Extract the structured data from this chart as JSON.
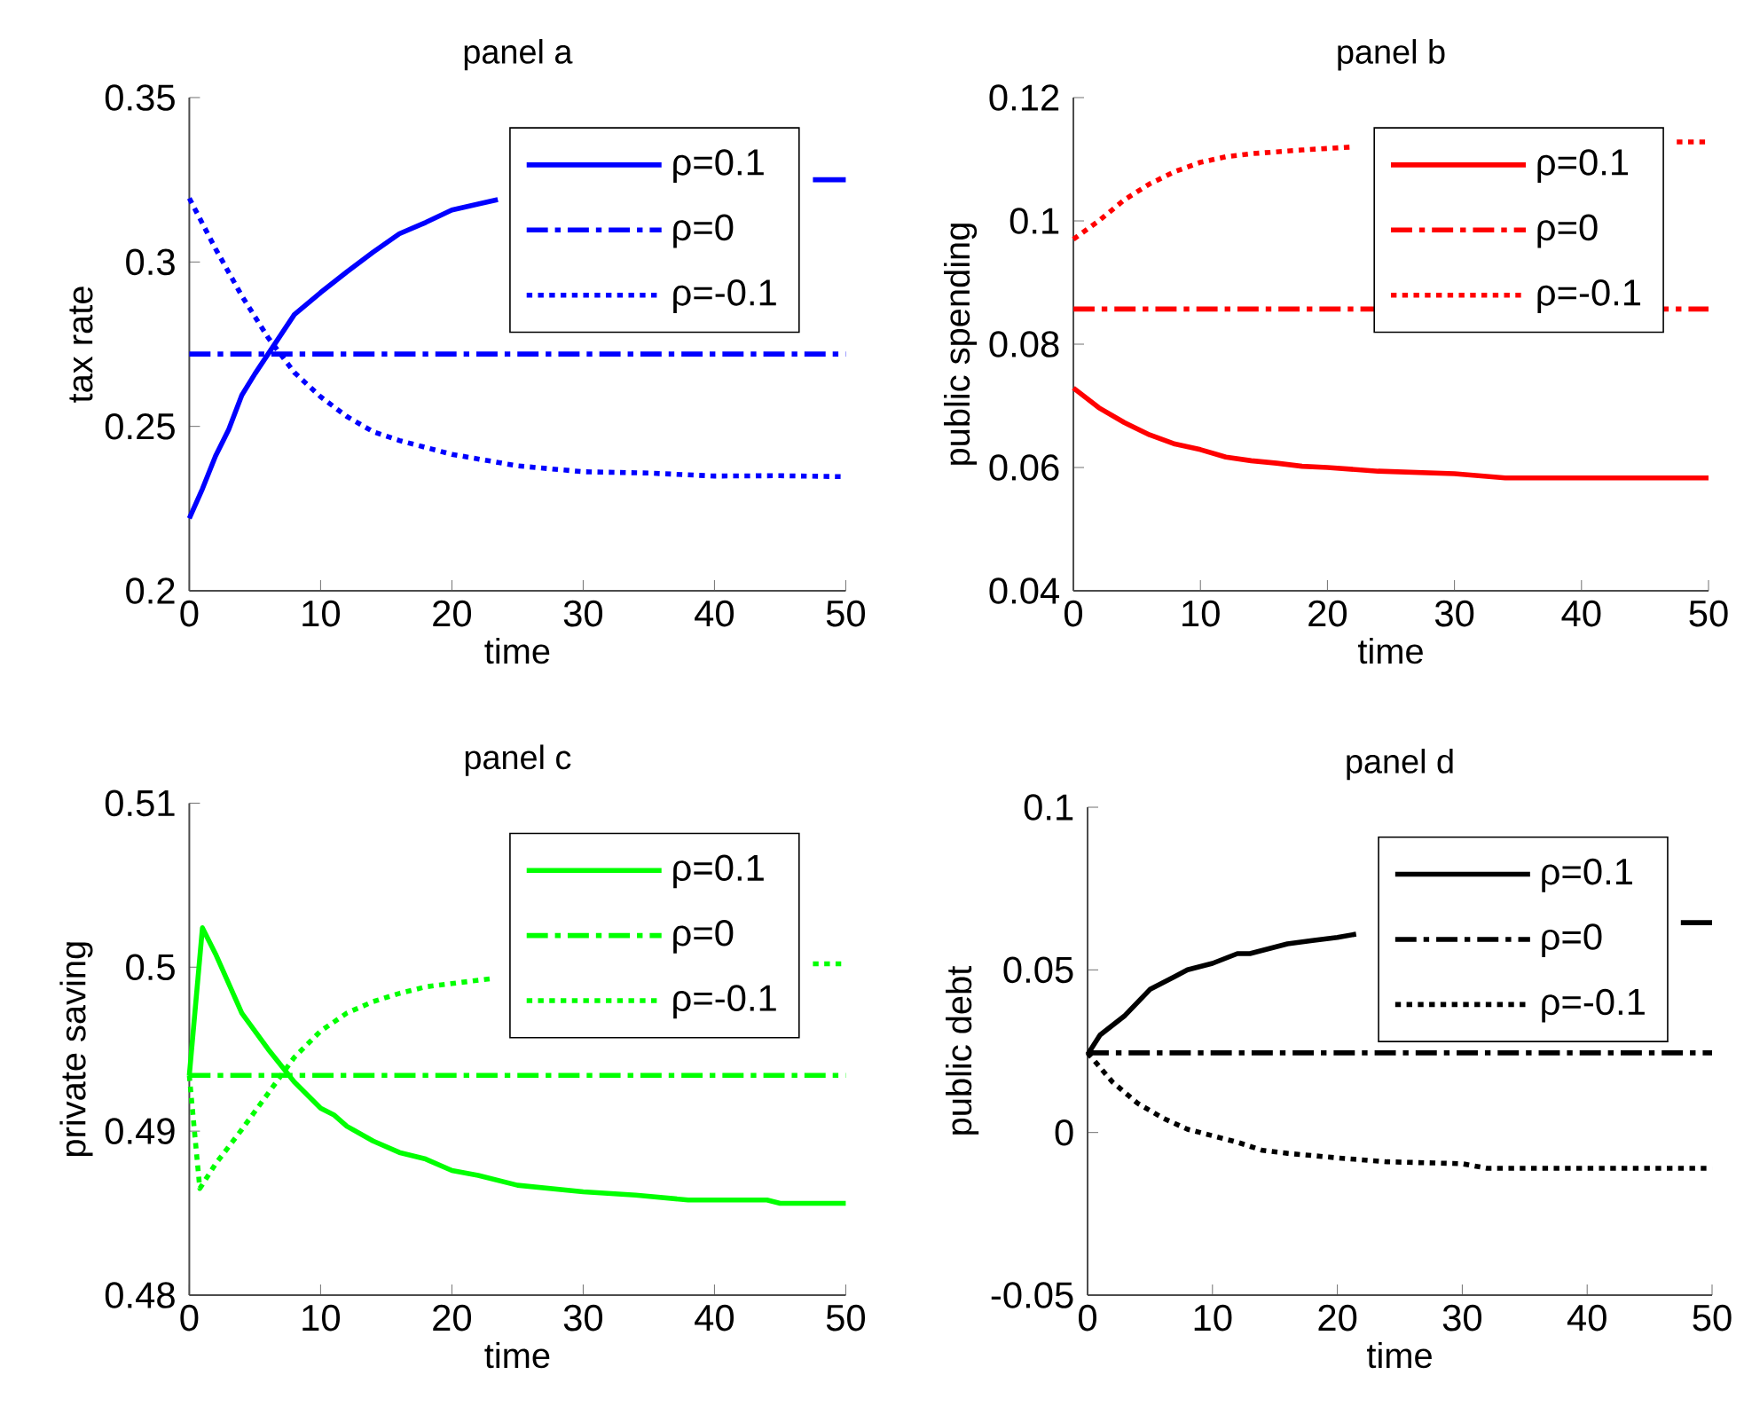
{
  "chart_data": [
    {
      "type": "line",
      "title": "panel a",
      "xlabel": "time",
      "ylabel": "tax rate",
      "xlim": [
        0,
        50
      ],
      "xticks": [
        0,
        10,
        20,
        30,
        40,
        50
      ],
      "ylim": [
        0.2,
        0.35
      ],
      "yticks": [
        0.2,
        0.25,
        0.3,
        0.35
      ],
      "legend": "top right",
      "series": [
        {
          "name": "ρ=0.1",
          "color": "#0000ff",
          "line_style": "solid",
          "x": [
            0,
            1,
            2,
            3,
            4,
            5,
            6,
            8,
            10,
            12,
            14,
            16,
            18,
            20,
            22,
            23.5,
            36,
            47.5,
            50
          ],
          "values": [
            0.222,
            0.231,
            0.241,
            0.249,
            0.2595,
            0.266,
            0.272,
            0.284,
            0.2907,
            0.297,
            0.303,
            0.3086,
            0.312,
            0.3158,
            0.3176,
            0.319,
            null,
            0.325,
            0.325
          ]
        },
        {
          "name": "ρ=0",
          "color": "#0000ff",
          "line_style": "dashdot",
          "x": [
            0,
            50
          ],
          "values": [
            0.272,
            0.272
          ]
        },
        {
          "name": "ρ=-0.1",
          "color": "#0000ff",
          "line_style": "dotted",
          "x": [
            0,
            2,
            4,
            6,
            8,
            10,
            12,
            14,
            16,
            20,
            25,
            30,
            35,
            40,
            45,
            50
          ],
          "values": [
            0.3194,
            0.304,
            0.2897,
            0.277,
            0.2664,
            0.259,
            0.253,
            0.2484,
            0.2457,
            0.2415,
            0.238,
            0.2362,
            0.2358,
            0.2349,
            0.235,
            0.2347
          ]
        }
      ]
    },
    {
      "type": "line",
      "title": "panel b",
      "xlabel": "time",
      "ylabel": "public spending",
      "xlim": [
        0,
        50
      ],
      "xticks": [
        0,
        10,
        20,
        30,
        40,
        50
      ],
      "ylim": [
        0.04,
        0.12
      ],
      "yticks": [
        0.04,
        0.06,
        0.08,
        0.1,
        0.12
      ],
      "legend": "top right",
      "series": [
        {
          "name": "ρ=0.1",
          "color": "#ff0000",
          "line_style": "solid",
          "x": [
            0,
            2,
            4,
            6,
            8,
            10,
            12,
            14,
            16,
            18,
            20,
            24,
            30,
            34,
            40,
            50
          ],
          "values": [
            0.0729,
            0.0697,
            0.0673,
            0.0653,
            0.0638,
            0.0629,
            0.0617,
            0.0611,
            0.0607,
            0.0602,
            0.06,
            0.0594,
            0.059,
            0.0583,
            0.0583,
            0.0583
          ]
        },
        {
          "name": "ρ=0",
          "color": "#ff0000",
          "line_style": "dashdot",
          "x": [
            0,
            50
          ],
          "values": [
            0.0857,
            0.0857
          ]
        },
        {
          "name": "ρ=-0.1",
          "color": "#ff0000",
          "line_style": "dotted",
          "x": [
            0,
            2,
            4,
            6,
            8,
            10,
            12,
            14,
            18,
            22,
            36,
            47.5,
            50
          ],
          "values": [
            0.097,
            0.1,
            0.1034,
            0.106,
            0.108,
            0.1095,
            0.1104,
            0.1109,
            0.1115,
            0.112,
            null,
            0.1128,
            0.1128
          ]
        }
      ]
    },
    {
      "type": "line",
      "title": "panel c",
      "xlabel": "time",
      "ylabel": "private saving",
      "xlim": [
        0,
        50
      ],
      "xticks": [
        0,
        10,
        20,
        30,
        40,
        50
      ],
      "ylim": [
        0.48,
        0.51
      ],
      "yticks": [
        0.48,
        0.49,
        0.5,
        0.51
      ],
      "legend": "top right",
      "series": [
        {
          "name": "ρ=0.1",
          "color": "#00ff00",
          "line_style": "solid",
          "x": [
            0,
            1,
            2,
            3,
            4,
            5,
            6,
            8,
            10,
            11,
            12,
            14,
            16,
            18,
            20,
            22,
            25,
            30,
            34,
            38,
            44,
            45,
            50
          ],
          "values": [
            0.4934,
            0.5024,
            0.5008,
            0.499,
            0.4972,
            0.4961,
            0.495,
            0.493,
            0.4914,
            0.491,
            0.4903,
            0.4894,
            0.4887,
            0.4883,
            0.4876,
            0.4873,
            0.4867,
            0.4863,
            0.4861,
            0.4858,
            0.4858,
            0.4856,
            0.4856
          ]
        },
        {
          "name": "ρ=0",
          "color": "#00ff00",
          "line_style": "dashdot",
          "x": [
            0,
            50
          ],
          "values": [
            0.4934,
            0.4934
          ]
        },
        {
          "name": "ρ=-0.1",
          "color": "#00ff00",
          "line_style": "dotted",
          "x": [
            0,
            0.8,
            2,
            4,
            6,
            8,
            10,
            12,
            14,
            16,
            18,
            20,
            23,
            36,
            47.5,
            50
          ],
          "values": [
            0.4934,
            0.4865,
            0.488,
            0.4901,
            0.4923,
            0.4945,
            0.4961,
            0.4972,
            0.4979,
            0.4984,
            0.4988,
            0.499,
            0.4993,
            null,
            0.5002,
            0.5002
          ]
        }
      ]
    },
    {
      "type": "line",
      "title": "panel d",
      "xlabel": "time",
      "ylabel": "public debt",
      "xlim": [
        0,
        50
      ],
      "xticks": [
        0,
        10,
        20,
        30,
        40,
        50
      ],
      "ylim": [
        -0.05,
        0.1
      ],
      "yticks": [
        -0.05,
        0,
        0.05,
        0.1
      ],
      "legend": "top right",
      "series": [
        {
          "name": "ρ=0.1",
          "color": "#000000",
          "line_style": "solid",
          "x": [
            0,
            1,
            2,
            3,
            5,
            7,
            8,
            10,
            12,
            13,
            16,
            18,
            20,
            21.5,
            36,
            47.5,
            50
          ],
          "values": [
            0.024,
            0.03,
            0.033,
            0.036,
            0.044,
            0.048,
            0.05,
            0.052,
            0.055,
            0.055,
            0.058,
            0.059,
            0.06,
            0.061,
            null,
            0.0645,
            0.0645
          ]
        },
        {
          "name": "ρ=0",
          "color": "#000000",
          "line_style": "dashdot",
          "x": [
            0,
            50
          ],
          "values": [
            0.0245,
            0.0245
          ]
        },
        {
          "name": "ρ=-0.1",
          "color": "#000000",
          "line_style": "dotted",
          "x": [
            0,
            1,
            2,
            4,
            6,
            8,
            10,
            12,
            14,
            16,
            20,
            24,
            30,
            32,
            40,
            50
          ],
          "values": [
            0.0245,
            0.02,
            0.0155,
            0.009,
            0.0045,
            0.001,
            -0.001,
            -0.003,
            -0.0055,
            -0.0064,
            -0.0078,
            -0.009,
            -0.0096,
            -0.011,
            -0.011,
            -0.011
          ]
        }
      ]
    }
  ]
}
